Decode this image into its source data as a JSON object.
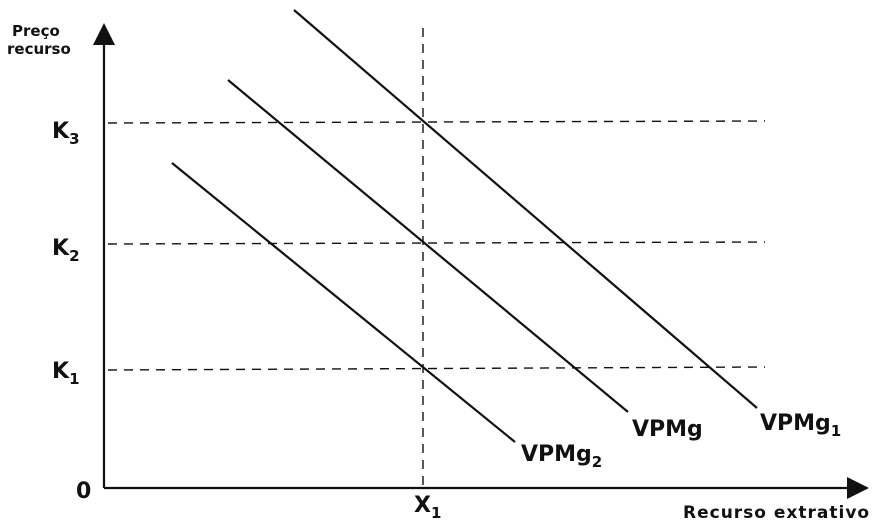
{
  "diagram": {
    "y_axis_title_line1": "Preço",
    "y_axis_title_line2": "recurso",
    "x_axis_title": "Recurso extrativo",
    "origin_label": "0",
    "y_ticks": [
      {
        "main": "K",
        "sub": "3"
      },
      {
        "main": "K",
        "sub": "2"
      },
      {
        "main": "K",
        "sub": "1"
      }
    ],
    "x_tick": {
      "main": "X",
      "sub": "1"
    },
    "curves": [
      {
        "main": "VPMg",
        "sub": "1"
      },
      {
        "main": "VPMg",
        "sub": ""
      },
      {
        "main": "VPMg",
        "sub": "2"
      }
    ]
  }
}
